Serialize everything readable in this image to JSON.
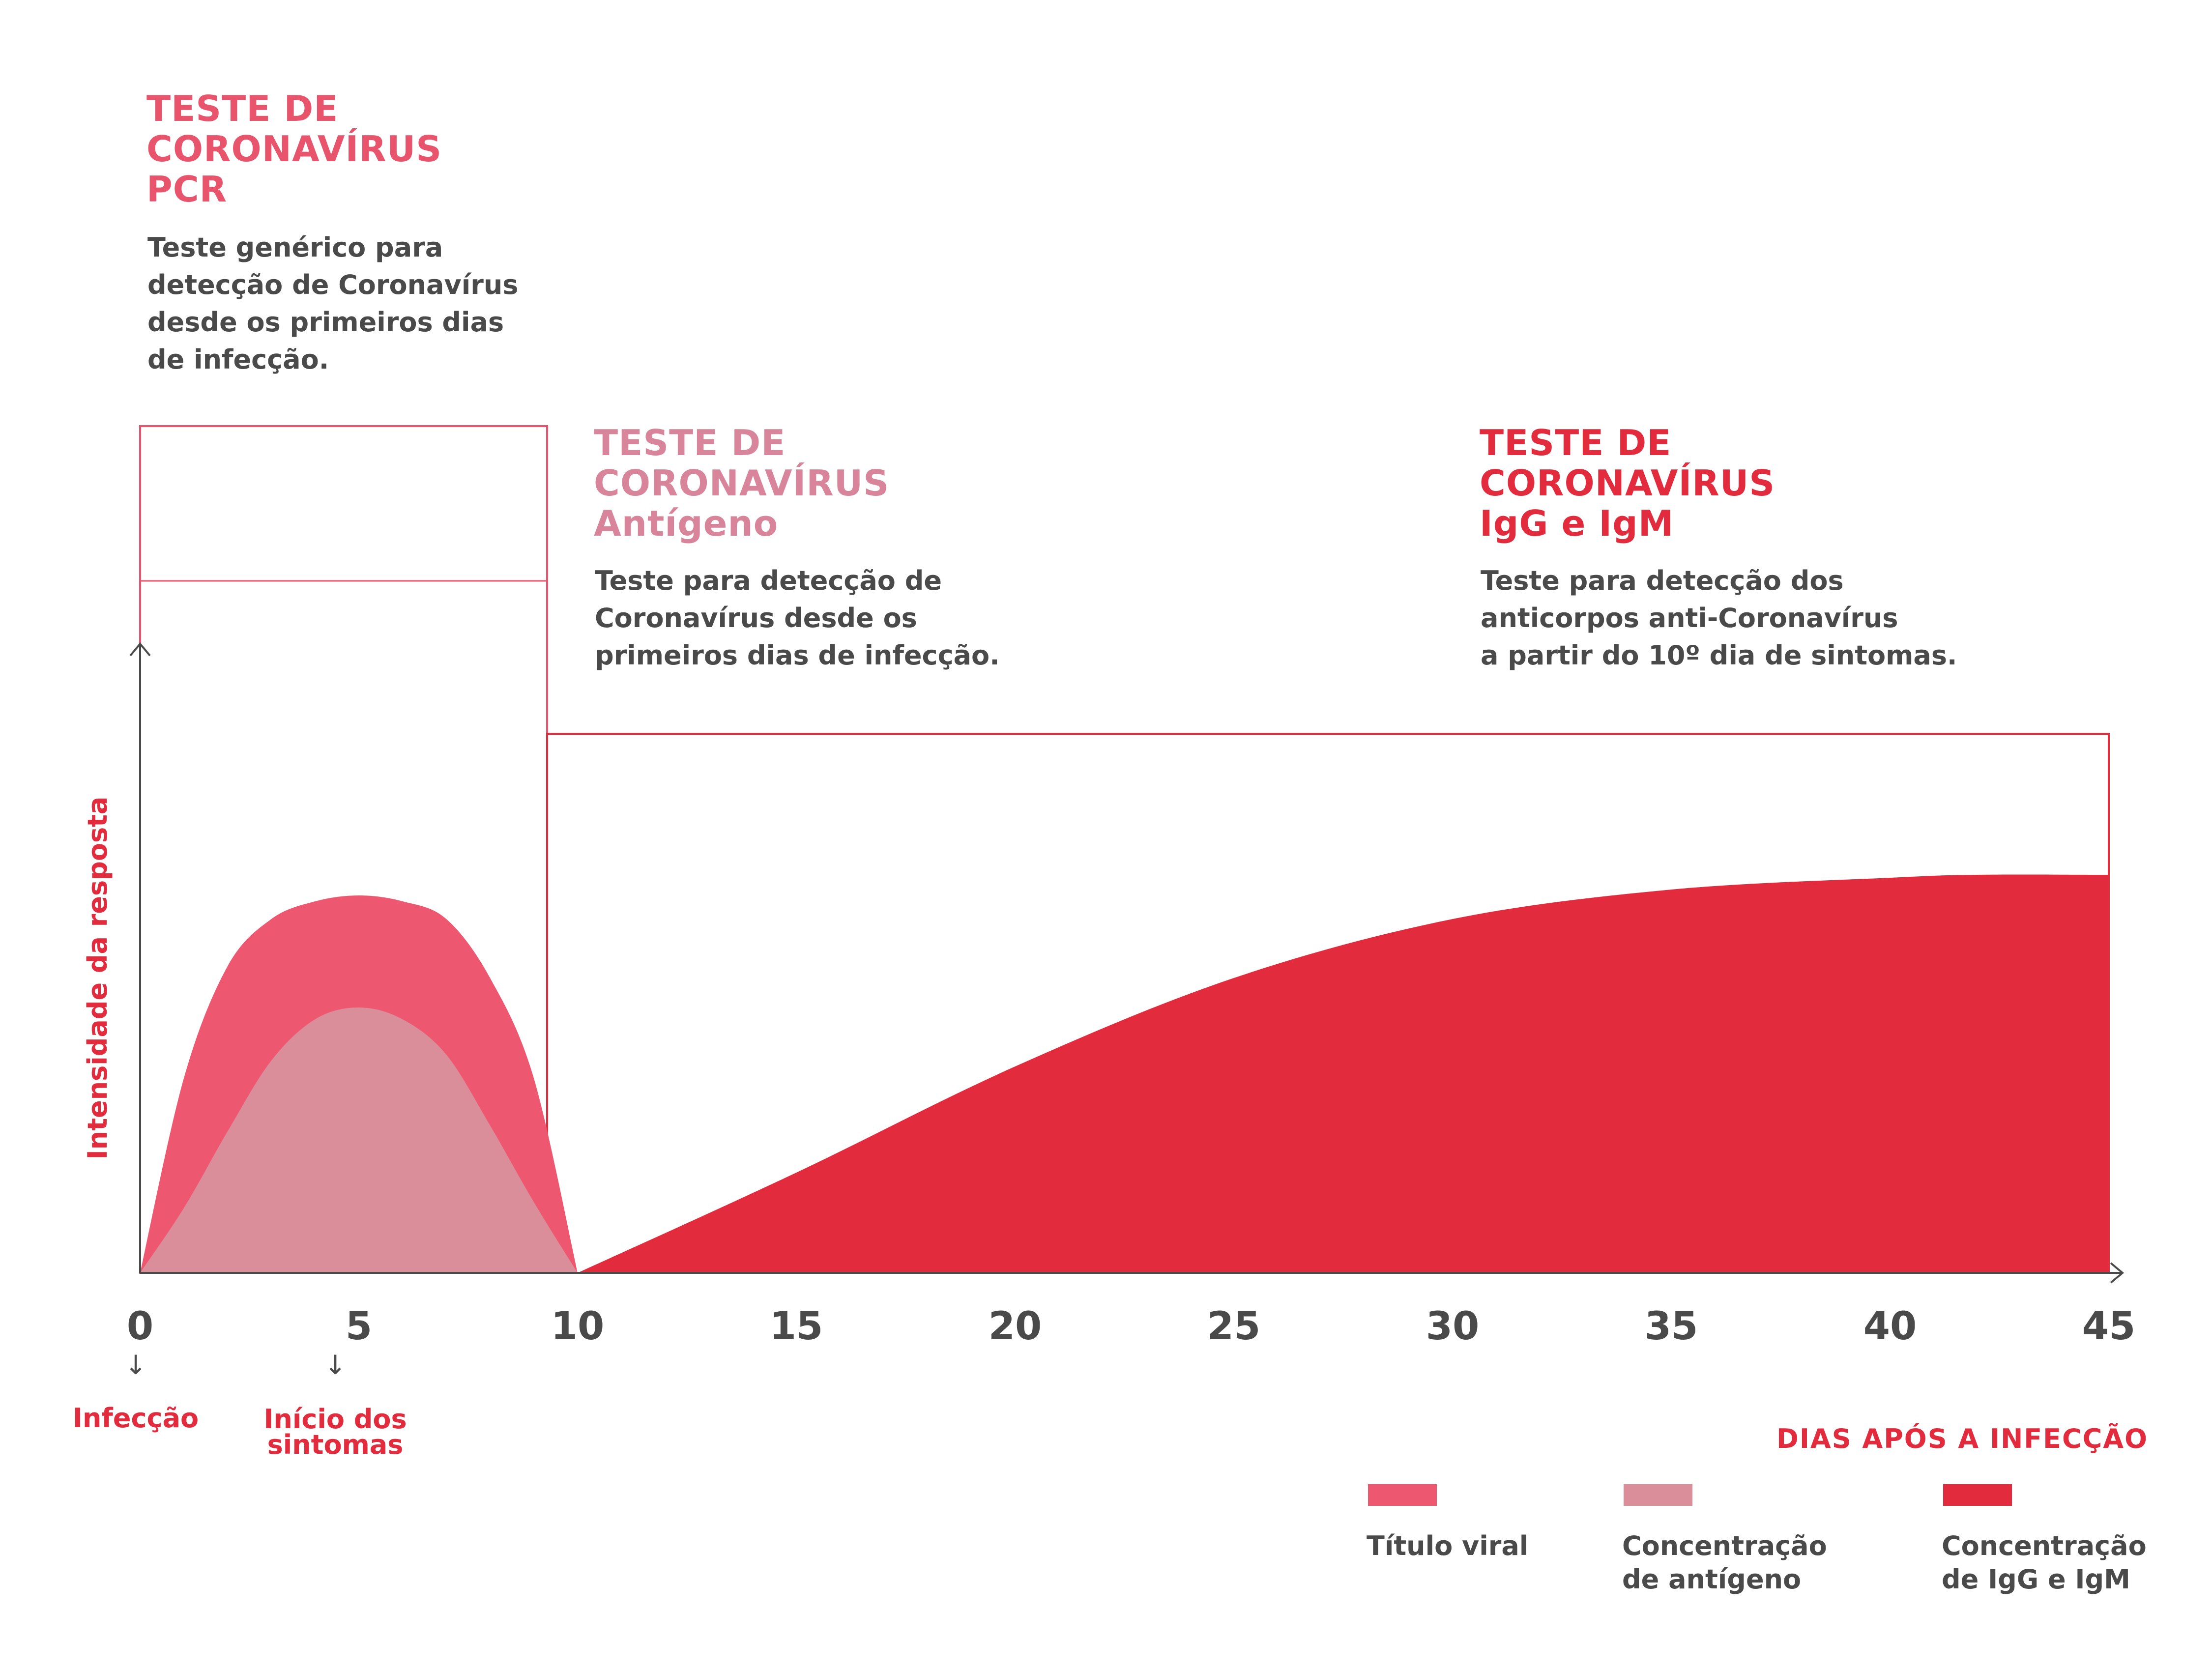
{
  "sections": {
    "pcr": {
      "title_lines": [
        "TESTE DE",
        "CORONAVÍRUS",
        "PCR"
      ],
      "description_lines": [
        "Teste genérico para",
        "detecção de Coronavírus",
        "desde os primeiros dias",
        "de infecção."
      ],
      "color": "#e8546c"
    },
    "antigen": {
      "title_lines": [
        "TESTE DE",
        "CORONAVÍRUS",
        "Antígeno"
      ],
      "description_lines": [
        "Teste para detecção de",
        "Coronavírus desde os",
        "primeiros dias de infecção."
      ],
      "color": "#d8849a"
    },
    "igg": {
      "title_lines": [
        "TESTE DE",
        "CORONAVÍRUS",
        "IgG e IgM"
      ],
      "description_lines": [
        "Teste para detecção dos",
        "anticorpos anti-Coronavírus",
        "a partir do 10º dia de sintomas."
      ],
      "color": "#e22c3e"
    }
  },
  "annotations": {
    "infection": "Infecção",
    "symptoms_lines": [
      "Início dos",
      "sintomas"
    ],
    "arrow_glyph": "↓"
  },
  "chart_data": {
    "type": "area",
    "xlabel": "DIAS APÓS A INFECÇÃO",
    "ylabel": "Intensidade da resposta",
    "xlim": [
      0,
      45
    ],
    "ylim": [
      0,
      1
    ],
    "x_ticks": [
      0,
      5,
      10,
      15,
      20,
      25,
      30,
      35,
      40,
      45
    ],
    "grid": false,
    "legend_placement": "bottom-right",
    "series": [
      {
        "name": "Título viral",
        "color": "#ee5770",
        "x": [
          0,
          1,
          2,
          3,
          4,
          5,
          6,
          7,
          8,
          9,
          10
        ],
        "y": [
          0,
          0.33,
          0.52,
          0.6,
          0.63,
          0.64,
          0.63,
          0.6,
          0.5,
          0.33,
          0
        ]
      },
      {
        "name": "Concentração de antígeno",
        "color": "#da8e9a",
        "x": [
          0,
          1,
          2,
          3,
          4,
          5,
          6,
          7,
          8,
          9,
          10
        ],
        "y": [
          0,
          0.11,
          0.24,
          0.36,
          0.43,
          0.45,
          0.43,
          0.37,
          0.25,
          0.12,
          0
        ]
      },
      {
        "name": "Concentração de IgG e IgM",
        "color": "#e22c3e",
        "x": [
          10,
          15,
          20,
          25,
          30,
          35,
          40,
          42,
          45
        ],
        "y": [
          0,
          0.17,
          0.35,
          0.5,
          0.6,
          0.65,
          0.67,
          0.675,
          0.675
        ]
      }
    ],
    "legend_lines": [
      [
        "Título viral"
      ],
      [
        "Concentração",
        "de antígeno"
      ],
      [
        "Concentração",
        "de IgG e IgM"
      ]
    ]
  }
}
